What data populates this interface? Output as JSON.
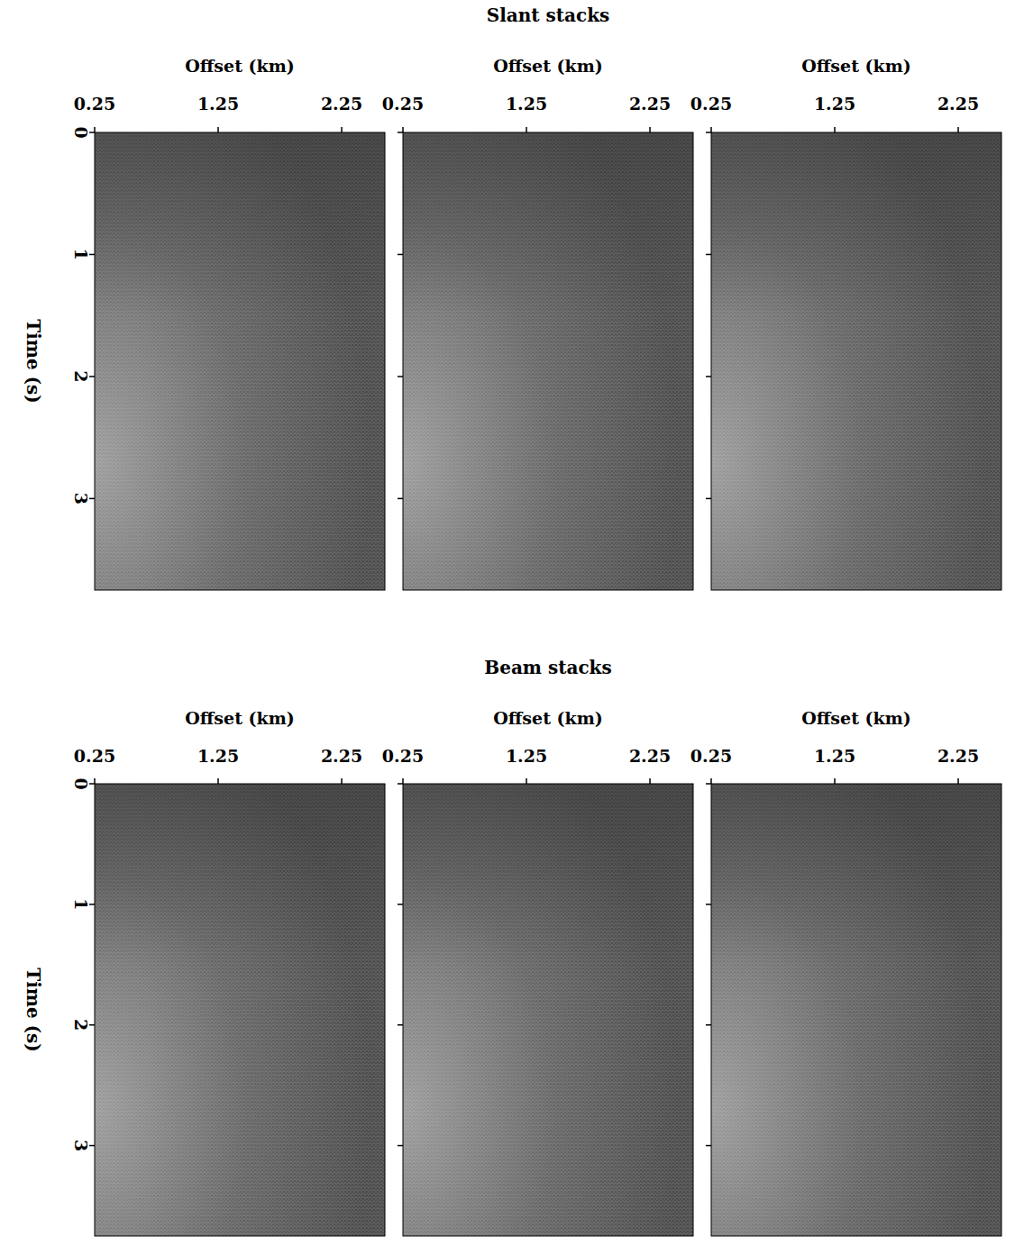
{
  "chart_data": [
    {
      "type": "image",
      "title": "Slant stacks",
      "ylabel": "Time (s)",
      "panels": [
        {
          "xlabel": "Offset (km)",
          "xlim": [
            0.25,
            2.6
          ],
          "xticks": [
            0.25,
            1.25,
            2.25
          ],
          "ylim": [
            0,
            3.75
          ],
          "yticks": [
            0,
            1,
            2,
            3
          ]
        },
        {
          "xlabel": "Offset (km)",
          "xlim": [
            0.25,
            2.6
          ],
          "xticks": [
            0.25,
            1.25,
            2.25
          ],
          "ylim": [
            0,
            3.75
          ],
          "yticks": [
            0,
            1,
            2,
            3
          ],
          "tick_labels": "x"
        },
        {
          "xlabel": "Offset (km)",
          "xlim": [
            0.25,
            2.6
          ],
          "xticks": [
            0.25,
            1.25,
            2.25
          ],
          "ylim": [
            0,
            3.75
          ],
          "yticks": [
            0,
            1,
            2,
            3
          ],
          "tick_labels": "x"
        }
      ]
    },
    {
      "type": "image",
      "title": "Beam stacks",
      "ylabel": "Time (s)",
      "panels": [
        {
          "xlabel": "Offset (km)",
          "xlim": [
            0.25,
            2.6
          ],
          "xticks": [
            0.25,
            1.25,
            2.25
          ],
          "ylim": [
            0,
            3.75
          ],
          "yticks": [
            0,
            1,
            2,
            3
          ]
        },
        {
          "xlabel": "Offset (km)",
          "xlim": [
            0.25,
            2.6
          ],
          "xticks": [
            0.25,
            1.25,
            2.25
          ],
          "ylim": [
            0,
            3.75
          ],
          "yticks": [
            0,
            1,
            2,
            3
          ],
          "tick_labels": "x"
        },
        {
          "xlabel": "Offset (km)",
          "xlim": [
            0.25,
            2.6
          ],
          "xticks": [
            0.25,
            1.25,
            2.25
          ],
          "ylim": [
            0,
            3.75
          ],
          "yticks": [
            0,
            1,
            2,
            3
          ],
          "tick_labels": "x"
        }
      ]
    }
  ]
}
